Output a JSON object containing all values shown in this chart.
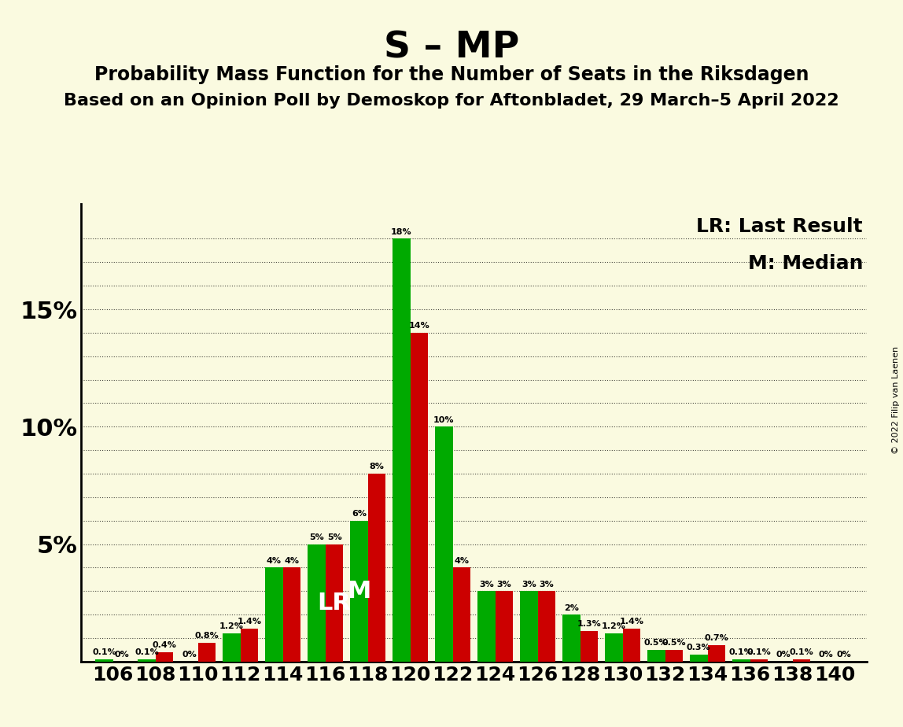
{
  "title": "S – MP",
  "subtitle1": "Probability Mass Function for the Number of Seats in the Riksdagen",
  "subtitle2": "Based on an Opinion Poll by Demoskop for Aftonbladet, 29 March–5 April 2022",
  "copyright": "© 2022 Filip van Laenen",
  "legend_lr": "LR: Last Result",
  "legend_m": "M: Median",
  "background_color": "#FAFAE0",
  "seats": [
    106,
    108,
    110,
    112,
    114,
    116,
    118,
    120,
    122,
    124,
    126,
    128,
    130,
    132,
    134,
    136,
    138,
    140
  ],
  "green_values": [
    0.1,
    0.1,
    0.0,
    1.2,
    4.0,
    5.0,
    6.0,
    18.0,
    10.0,
    3.0,
    3.0,
    2.0,
    1.2,
    0.5,
    0.3,
    0.1,
    0.0,
    0.0
  ],
  "red_values": [
    0.0,
    0.4,
    0.8,
    1.4,
    4.0,
    5.0,
    8.0,
    14.0,
    4.0,
    3.0,
    3.0,
    1.3,
    1.4,
    0.5,
    0.7,
    0.1,
    0.1,
    0.0
  ],
  "green_labels": [
    "0.1%",
    "0.1%",
    "0%",
    "1.2%",
    "4%",
    "5%",
    "6%",
    "18%",
    "10%",
    "3%",
    "3%",
    "2%",
    "1.2%",
    "0.5%",
    "0.3%",
    "0.1%",
    "0%",
    "0%"
  ],
  "red_labels": [
    "0%",
    "0.4%",
    "0.8%",
    "1.4%",
    "4%",
    "5%",
    "8%",
    "14%",
    "4%",
    "3%",
    "3%",
    "1.3%",
    "1.4%",
    "0.5%",
    "0.7%",
    "0.1%",
    "0.1%",
    "0%"
  ],
  "lr_seat_idx": 5,
  "median_seat_idx": 6,
  "ylim": [
    0,
    19.5
  ],
  "green_color": "#00AA00",
  "red_color": "#CC0000",
  "bar_width": 0.42
}
